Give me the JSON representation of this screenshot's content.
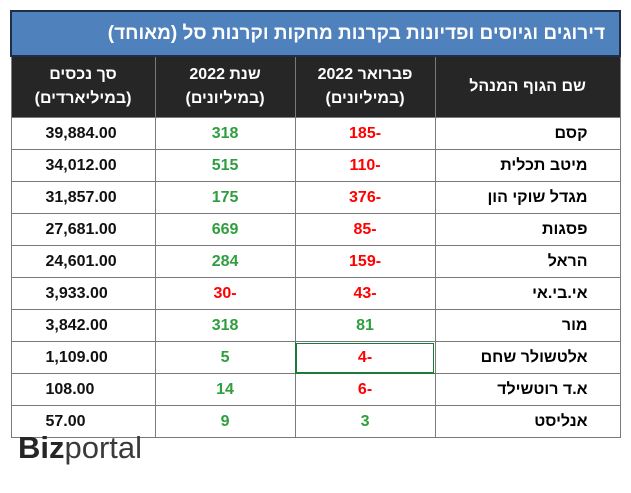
{
  "table": {
    "title": "דירוגים וגיוסים ופדיונות בקרנות מחקות וקרנות סל (מאוחד)",
    "headers": {
      "name": "שם הגוף המנהל",
      "feb_line1": "פברואר 2022",
      "feb_line2": "(במיליונים)",
      "year_line1": "שנת 2022",
      "year_line2": "(במיליונים)",
      "assets_line1": "סך נכסים",
      "assets_line2": "(במיליארדים)"
    },
    "rows": [
      {
        "name": "קסם",
        "feb": "-185",
        "year": "318",
        "assets": "39,884.00"
      },
      {
        "name": "מיטב תכלית",
        "feb": "-110",
        "year": "515",
        "assets": "34,012.00"
      },
      {
        "name": "מגדל שוקי הון",
        "feb": "-376",
        "year": "175",
        "assets": "31,857.00"
      },
      {
        "name": "פסגות",
        "feb": "-85",
        "year": "669",
        "assets": "27,681.00"
      },
      {
        "name": "הראל",
        "feb": "-159",
        "year": "284",
        "assets": "24,601.00"
      },
      {
        "name": "אי.בי.אי",
        "feb": "-43",
        "year": "-30",
        "assets": "3,933.00"
      },
      {
        "name": "מור",
        "feb": "81",
        "year": "318",
        "assets": "3,842.00"
      },
      {
        "name": "אלטשולר שחם",
        "feb": "-4",
        "year": "5",
        "assets": "1,109.00"
      },
      {
        "name": "א.ד רוטשילד",
        "feb": "-6",
        "year": "14",
        "assets": "108.00"
      },
      {
        "name": "אנליסט",
        "feb": "3",
        "year": "9",
        "assets": "57.00"
      }
    ]
  },
  "colors": {
    "title_bg": "#4f81bd",
    "header_bg": "#262626",
    "negative": "#ff0000",
    "positive": "#2e9e3e"
  },
  "logo": {
    "part1": "Biz",
    "part2": "portal"
  }
}
